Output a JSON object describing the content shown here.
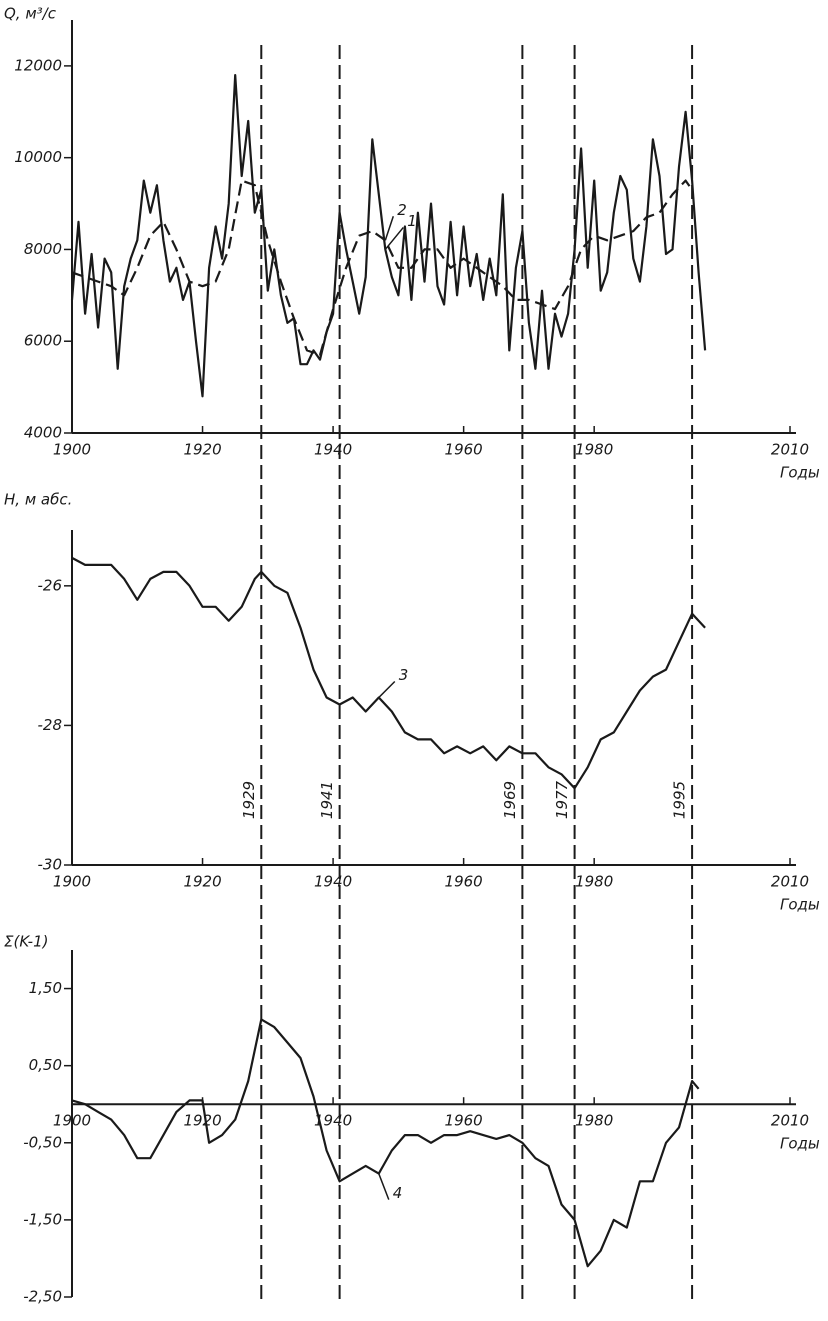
{
  "chart_data": [
    {
      "type": "line",
      "y_label": "Q, м³/с",
      "x_label": "Годы",
      "xlim": [
        1900,
        2010
      ],
      "xticks": [
        1900,
        1920,
        1940,
        1960,
        1980,
        2010
      ],
      "ylim": [
        4000,
        13000
      ],
      "yticks": [
        4000,
        6000,
        8000,
        10000,
        12000
      ],
      "series": [
        {
          "name": "1",
          "color": "#1a1a1a",
          "dashed": false,
          "x": [
            1900,
            1901,
            1902,
            1903,
            1904,
            1905,
            1906,
            1907,
            1908,
            1909,
            1910,
            1911,
            1912,
            1913,
            1914,
            1915,
            1916,
            1917,
            1918,
            1919,
            1920,
            1921,
            1922,
            1923,
            1924,
            1925,
            1926,
            1927,
            1928,
            1929,
            1930,
            1931,
            1932,
            1933,
            1934,
            1935,
            1936,
            1937,
            1938,
            1939,
            1940,
            1941,
            1942,
            1943,
            1944,
            1945,
            1946,
            1947,
            1948,
            1949,
            1950,
            1951,
            1952,
            1953,
            1954,
            1955,
            1956,
            1957,
            1958,
            1959,
            1960,
            1961,
            1962,
            1963,
            1964,
            1965,
            1966,
            1967,
            1968,
            1969,
            1970,
            1971,
            1972,
            1973,
            1974,
            1975,
            1976,
            1977,
            1978,
            1979,
            1980,
            1981,
            1982,
            1983,
            1984,
            1985,
            1986,
            1987,
            1988,
            1989,
            1990,
            1991,
            1992,
            1993,
            1994,
            1995,
            1996,
            1997
          ],
          "values": [
            6900,
            8600,
            6600,
            7900,
            6300,
            7800,
            7500,
            5400,
            7200,
            7800,
            8200,
            9500,
            8800,
            9400,
            8200,
            7300,
            7600,
            6900,
            7300,
            6000,
            4800,
            7600,
            8500,
            7800,
            9000,
            11800,
            9600,
            10800,
            8800,
            9300,
            7100,
            8000,
            7000,
            6400,
            6500,
            5500,
            5500,
            5800,
            5600,
            6200,
            6600,
            8800,
            8000,
            7300,
            6600,
            7400,
            10400,
            9200,
            8000,
            7400,
            7000,
            8500,
            6900,
            8800,
            7300,
            9000,
            7200,
            6800,
            8600,
            7000,
            8500,
            7200,
            7900,
            6900,
            7800,
            7000,
            9200,
            5800,
            7600,
            8400,
            6400,
            5400,
            7100,
            5400,
            6600,
            6100,
            6600,
            8000,
            10200,
            7600,
            9500,
            7100,
            7500,
            8800,
            9600,
            9300,
            7800,
            7300,
            8500,
            10400,
            9600,
            7900,
            8000,
            9800,
            11000,
            9500,
            7500,
            5800
          ]
        },
        {
          "name": "2",
          "color": "#1a1a1a",
          "dashed": true,
          "x": [
            1900,
            1902,
            1904,
            1906,
            1908,
            1910,
            1912,
            1914,
            1916,
            1918,
            1920,
            1922,
            1924,
            1926,
            1928,
            1930,
            1932,
            1934,
            1936,
            1938,
            1940,
            1942,
            1944,
            1946,
            1948,
            1950,
            1952,
            1954,
            1956,
            1958,
            1960,
            1962,
            1964,
            1966,
            1968,
            1970,
            1972,
            1974,
            1976,
            1978,
            1980,
            1982,
            1984,
            1986,
            1988,
            1990,
            1992,
            1994,
            1995
          ],
          "values": [
            7500,
            7400,
            7300,
            7200,
            7000,
            7600,
            8300,
            8600,
            8000,
            7300,
            7200,
            7300,
            8000,
            9500,
            9400,
            8200,
            7300,
            6500,
            5800,
            5700,
            6700,
            7600,
            8300,
            8400,
            8200,
            7600,
            7600,
            8000,
            8000,
            7600,
            7800,
            7600,
            7400,
            7200,
            6900,
            6900,
            6800,
            6700,
            7200,
            8000,
            8300,
            8200,
            8300,
            8400,
            8700,
            8800,
            9200,
            9500,
            9300
          ]
        }
      ]
    },
    {
      "type": "line",
      "y_label": "H, м абс.",
      "x_label": "Годы",
      "xlim": [
        1900,
        2010
      ],
      "xticks": [
        1900,
        1920,
        1940,
        1960,
        1980,
        2010
      ],
      "ylim": [
        -30,
        -25.2
      ],
      "yticks": [
        -30,
        -28,
        -26
      ],
      "vlines": [
        1929,
        1941,
        1969,
        1977,
        1995
      ],
      "series": [
        {
          "name": "3",
          "color": "#1a1a1a",
          "dashed": false,
          "x": [
            1900,
            1902,
            1904,
            1906,
            1908,
            1910,
            1912,
            1914,
            1916,
            1918,
            1920,
            1922,
            1924,
            1926,
            1928,
            1929,
            1931,
            1933,
            1935,
            1937,
            1939,
            1941,
            1943,
            1945,
            1947,
            1949,
            1951,
            1953,
            1955,
            1957,
            1959,
            1961,
            1963,
            1965,
            1967,
            1969,
            1971,
            1973,
            1975,
            1977,
            1979,
            1981,
            1983,
            1985,
            1987,
            1989,
            1991,
            1993,
            1995,
            1997
          ],
          "values": [
            -25.6,
            -25.7,
            -25.7,
            -25.7,
            -25.9,
            -26.2,
            -25.9,
            -25.8,
            -25.8,
            -26.0,
            -26.3,
            -26.3,
            -26.5,
            -26.3,
            -25.9,
            -25.8,
            -26.0,
            -26.1,
            -26.6,
            -27.2,
            -27.6,
            -27.7,
            -27.6,
            -27.8,
            -27.6,
            -27.8,
            -28.1,
            -28.2,
            -28.2,
            -28.4,
            -28.3,
            -28.4,
            -28.3,
            -28.5,
            -28.3,
            -28.4,
            -28.4,
            -28.6,
            -28.7,
            -28.9,
            -28.6,
            -28.2,
            -28.1,
            -27.8,
            -27.5,
            -27.3,
            -27.2,
            -26.8,
            -26.4,
            -26.6
          ]
        }
      ]
    },
    {
      "type": "line",
      "y_label": "Σ(K-1)",
      "x_label": "Годы",
      "xlim": [
        1900,
        2010
      ],
      "xticks": [
        1900,
        1920,
        1940,
        1960,
        1980,
        2010
      ],
      "ylim": [
        -2.5,
        2.0
      ],
      "yticks": [
        {
          "value": -2.5,
          "label": "-2,50"
        },
        {
          "value": -1.5,
          "label": "-1,50"
        },
        {
          "value": -0.5,
          "label": "-0,50"
        },
        {
          "value": 0.5,
          "label": "0,50"
        },
        {
          "value": 1.5,
          "label": "1,50"
        }
      ],
      "series": [
        {
          "name": "4",
          "color": "#1a1a1a",
          "dashed": false,
          "x": [
            1900,
            1902,
            1904,
            1906,
            1908,
            1910,
            1912,
            1914,
            1916,
            1918,
            1920,
            1921,
            1923,
            1925,
            1927,
            1929,
            1931,
            1933,
            1935,
            1937,
            1939,
            1941,
            1943,
            1945,
            1947,
            1949,
            1951,
            1953,
            1955,
            1957,
            1959,
            1961,
            1963,
            1965,
            1967,
            1969,
            1971,
            1973,
            1975,
            1977,
            1979,
            1981,
            1983,
            1985,
            1987,
            1989,
            1991,
            1993,
            1995,
            1996
          ],
          "values": [
            0.05,
            0.0,
            -0.1,
            -0.2,
            -0.4,
            -0.7,
            -0.7,
            -0.4,
            -0.1,
            0.05,
            0.05,
            -0.5,
            -0.4,
            -0.2,
            0.3,
            1.1,
            1.0,
            0.8,
            0.6,
            0.1,
            -0.6,
            -1.0,
            -0.9,
            -0.8,
            -0.9,
            -0.6,
            -0.4,
            -0.4,
            -0.5,
            -0.4,
            -0.4,
            -0.35,
            -0.4,
            -0.45,
            -0.4,
            -0.5,
            -0.7,
            -0.8,
            -1.3,
            -1.5,
            -2.1,
            -1.9,
            -1.5,
            -1.6,
            -1.0,
            -1.0,
            -0.5,
            -0.3,
            0.3,
            0.2
          ]
        }
      ]
    }
  ]
}
